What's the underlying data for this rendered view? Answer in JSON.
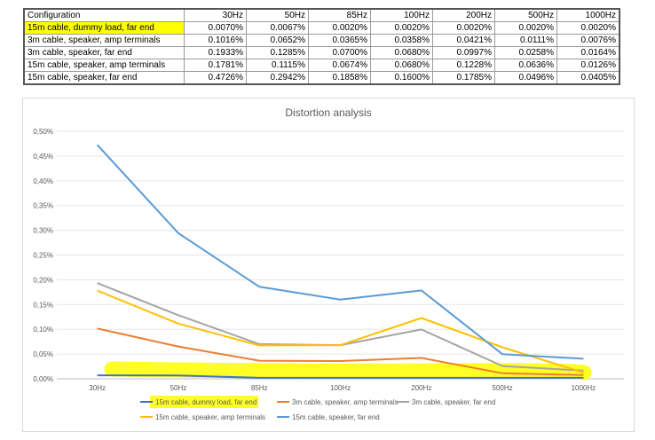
{
  "table": {
    "headers": [
      "Configuration",
      "30Hz",
      "50Hz",
      "85Hz",
      "100Hz",
      "200Hz",
      "500Hz",
      "1000Hz"
    ],
    "rows": [
      {
        "label": "15m cable, dummy load, far end",
        "highlight": true,
        "values": [
          "0.0070%",
          "0.0067%",
          "0.0020%",
          "0.0020%",
          "0.0020%",
          "0.0020%",
          "0.0020%"
        ]
      },
      {
        "label": "3m cable, speaker, amp terminals",
        "highlight": false,
        "values": [
          "0.1016%",
          "0.0652%",
          "0.0365%",
          "0.0358%",
          "0.0421%",
          "0.0111%",
          "0.0076%"
        ]
      },
      {
        "label": "3m cable, speaker, far end",
        "highlight": false,
        "values": [
          "0.1933%",
          "0.1285%",
          "0.0700%",
          "0.0680%",
          "0.0997%",
          "0.0258%",
          "0.0164%"
        ]
      },
      {
        "label": "15m cable, speaker, amp terminals",
        "highlight": false,
        "values": [
          "0.1781%",
          "0.1115%",
          "0.0674%",
          "0.0680%",
          "0.1228%",
          "0.0636%",
          "0.0126%"
        ]
      },
      {
        "label": "15m cable, speaker, far end",
        "highlight": false,
        "values": [
          "0.4726%",
          "0.2942%",
          "0.1858%",
          "0.1600%",
          "0.1785%",
          "0.0496%",
          "0.0405%"
        ]
      }
    ]
  },
  "chart_data": {
    "type": "line",
    "title": "Distortion analysis",
    "categories": [
      "30Hz",
      "50Hz",
      "85Hz",
      "100Hz",
      "200Hz",
      "500Hz",
      "1000Hz"
    ],
    "ylim": [
      0,
      0.5
    ],
    "yticks": [
      0,
      0.05,
      0.1,
      0.15,
      0.2,
      0.25,
      0.3,
      0.35,
      0.4,
      0.45,
      0.5
    ],
    "ytick_labels": [
      "0,00%",
      "0,05%",
      "0,10%",
      "0,15%",
      "0,20%",
      "0,25%",
      "0,30%",
      "0,35%",
      "0,40%",
      "0,45%",
      "0,50%"
    ],
    "grid": true,
    "legend_position": "bottom",
    "series": [
      {
        "name": "15m cable, dummy load, far end",
        "color": "#4472c4",
        "values": [
          0.007,
          0.0067,
          0.002,
          0.002,
          0.002,
          0.002,
          0.002
        ]
      },
      {
        "name": "3m cable, speaker, amp terminals",
        "color": "#ed7d31",
        "values": [
          0.1016,
          0.0652,
          0.0365,
          0.0358,
          0.0421,
          0.0111,
          0.0076
        ]
      },
      {
        "name": "3m cable, speaker, far end",
        "color": "#a5a5a5",
        "values": [
          0.1933,
          0.1285,
          0.07,
          0.068,
          0.0997,
          0.0258,
          0.0164
        ]
      },
      {
        "name": "15m cable, speaker, amp terminals",
        "color": "#ffc000",
        "values": [
          0.1781,
          0.1115,
          0.0674,
          0.068,
          0.1228,
          0.0636,
          0.0126
        ]
      },
      {
        "name": "15m cable, speaker, far end",
        "color": "#5b9bd5",
        "values": [
          0.4726,
          0.2942,
          0.1858,
          0.16,
          0.1785,
          0.0496,
          0.0405
        ]
      }
    ],
    "highlight_color": "#ffff00"
  }
}
